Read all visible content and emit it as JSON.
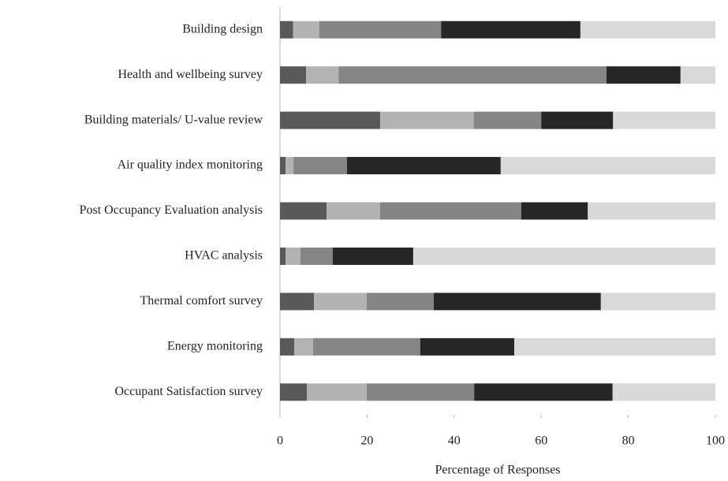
{
  "chart_data": {
    "type": "stacked-barh",
    "xlabel": "Percentage of Responses",
    "categories": [
      "Building design",
      "Health and wellbeing survey",
      "Building materials/ U-value review",
      "Air quality index monitoring",
      "Post Occupancy Evaluation analysis",
      "HVAC analysis",
      "Thermal comfort survey",
      "Energy monitoring",
      "Occupant Satisfaction survey"
    ],
    "series": [
      {
        "color": "#595959",
        "values": [
          3,
          6,
          23,
          1.3,
          10.7,
          1.3,
          7.8,
          3.3,
          6.2
        ]
      },
      {
        "color": "#b3b3b3",
        "values": [
          6,
          7.5,
          21.5,
          1.8,
          12.3,
          3.4,
          12.1,
          4.3,
          13.7
        ]
      },
      {
        "color": "#858585",
        "values": [
          28,
          61.5,
          15.5,
          12.3,
          32.4,
          7.4,
          15.4,
          24.6,
          24.7
        ]
      },
      {
        "color": "#262626",
        "values": [
          32,
          17,
          16.5,
          35.3,
          15.3,
          18.5,
          38.4,
          21.6,
          31.8
        ]
      },
      {
        "color": "#d9d9d9",
        "values": [
          31,
          8,
          23.5,
          49.3,
          29.3,
          69.4,
          26.3,
          46.2,
          23.6
        ]
      }
    ],
    "xlim": [
      0,
      100
    ],
    "xticks": [
      0,
      20,
      40,
      60,
      80,
      100
    ]
  }
}
